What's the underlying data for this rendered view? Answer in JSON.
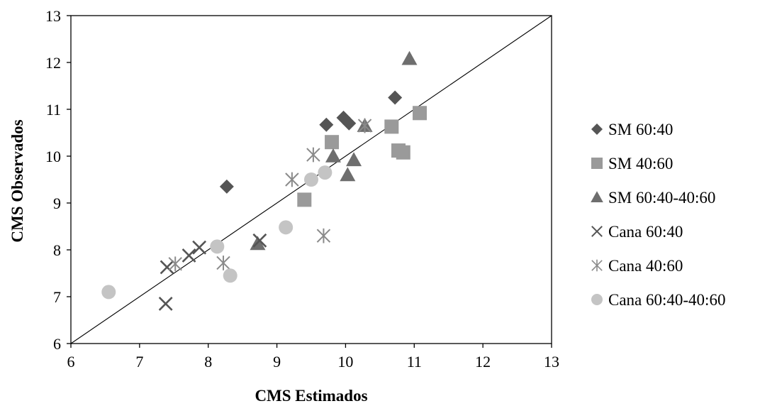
{
  "chart_data": {
    "type": "scatter",
    "xlabel": "CMS Estimados",
    "ylabel": "CMS Observados",
    "xlim": [
      6,
      13
    ],
    "ylim": [
      6,
      13
    ],
    "xticks": [
      "6",
      "7",
      "8",
      "9",
      "10",
      "11",
      "12",
      "13"
    ],
    "yticks": [
      "6",
      "7",
      "8",
      "9",
      "10",
      "11",
      "12",
      "13"
    ],
    "grid": false,
    "reference_line": {
      "from": [
        6,
        6
      ],
      "to": [
        13,
        13
      ]
    },
    "legend_position": "right",
    "series": [
      {
        "name": "SM 60:40",
        "marker": "diamond",
        "color": "#555555",
        "points": [
          [
            8.27,
            9.35
          ],
          [
            9.72,
            10.67
          ],
          [
            9.97,
            10.82
          ],
          [
            10.05,
            10.7
          ],
          [
            10.72,
            11.25
          ]
        ]
      },
      {
        "name": "SM 40:60",
        "marker": "square",
        "color": "#9a9a9a",
        "points": [
          [
            9.4,
            9.07
          ],
          [
            9.8,
            10.3
          ],
          [
            10.67,
            10.63
          ],
          [
            10.77,
            10.12
          ],
          [
            10.84,
            10.08
          ],
          [
            11.08,
            10.92
          ]
        ]
      },
      {
        "name": "SM 60:40-40:60",
        "marker": "triangle",
        "color": "#6e6e6e",
        "points": [
          [
            8.72,
            8.13
          ],
          [
            9.82,
            10.0
          ],
          [
            10.03,
            9.6
          ],
          [
            10.12,
            9.92
          ],
          [
            10.28,
            10.65
          ],
          [
            10.93,
            12.08
          ]
        ]
      },
      {
        "name": "Cana 60:40",
        "marker": "x",
        "color": "#555555",
        "points": [
          [
            7.38,
            6.85
          ],
          [
            7.4,
            7.63
          ],
          [
            7.72,
            7.88
          ],
          [
            7.87,
            8.05
          ],
          [
            8.75,
            8.2
          ]
        ]
      },
      {
        "name": "Cana 40:60",
        "marker": "asterisk",
        "color": "#8a8a8a",
        "points": [
          [
            7.52,
            7.7
          ],
          [
            8.22,
            7.72
          ],
          [
            9.22,
            9.5
          ],
          [
            9.53,
            10.03
          ],
          [
            9.68,
            8.3
          ],
          [
            10.28,
            10.65
          ]
        ]
      },
      {
        "name": "Cana 60:40-40:60",
        "marker": "circle",
        "color": "#c4c4c4",
        "points": [
          [
            6.55,
            7.1
          ],
          [
            8.13,
            8.07
          ],
          [
            8.32,
            7.45
          ],
          [
            9.13,
            8.48
          ],
          [
            9.5,
            9.5
          ],
          [
            9.7,
            9.65
          ]
        ]
      }
    ]
  }
}
